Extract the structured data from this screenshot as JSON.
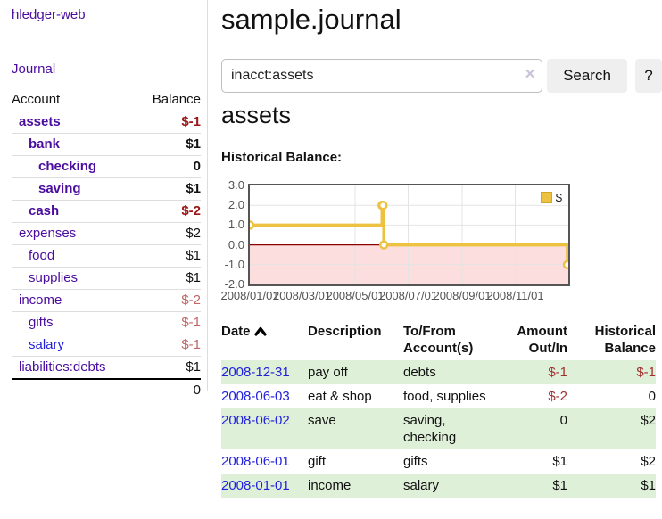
{
  "theme": {
    "purple": "#4a0d9e",
    "blue_link": "#2222dd",
    "dark_red": "#9b1616",
    "muted_red": "#c06767",
    "table_neg_red": "#a03030",
    "stripe_green": "#dff0d8"
  },
  "sidebar": {
    "brand": "hledger-web",
    "journal_label": "Journal",
    "header": {
      "account": "Account",
      "balance": "Balance"
    },
    "rows": [
      {
        "name": "assets",
        "balance": "$-1",
        "depth": 0,
        "bold": true,
        "balance_style": "neg-strong"
      },
      {
        "name": "bank",
        "balance": "$1",
        "depth": 1,
        "bold": true,
        "balance_style": "pos"
      },
      {
        "name": "checking",
        "balance": "0",
        "depth": 2,
        "bold": true,
        "balance_style": "pos"
      },
      {
        "name": "saving",
        "balance": "$1",
        "depth": 2,
        "bold": true,
        "balance_style": "pos"
      },
      {
        "name": "cash",
        "balance": "$-2",
        "depth": 1,
        "bold": true,
        "balance_style": "neg-strong"
      },
      {
        "name": "expenses",
        "balance": "$2",
        "depth": 0,
        "bold": false,
        "balance_style": "pos"
      },
      {
        "name": "food",
        "balance": "$1",
        "depth": 1,
        "bold": false,
        "balance_style": "pos"
      },
      {
        "name": "supplies",
        "balance": "$1",
        "depth": 1,
        "bold": false,
        "balance_style": "pos"
      },
      {
        "name": "income",
        "balance": "$-2",
        "depth": 0,
        "bold": false,
        "balance_style": "neg-muted"
      },
      {
        "name": "gifts",
        "balance": "$-1",
        "depth": 1,
        "bold": false,
        "balance_style": "neg-muted"
      },
      {
        "name": "salary",
        "balance": "$-1",
        "depth": 1,
        "bold": false,
        "balance_style": "neg-muted",
        "link_color": "blue"
      },
      {
        "name": "liabilities:debts",
        "balance": "$1",
        "depth": 0,
        "bold": false,
        "balance_style": "pos"
      }
    ],
    "total": "0"
  },
  "main": {
    "title": "sample.journal",
    "search": {
      "value": "inacct:assets",
      "clear_icon": "×",
      "search_button": "Search",
      "help_button": "?"
    },
    "account_heading": "assets",
    "chart_heading": "Historical Balance:"
  },
  "chart_data": {
    "type": "line",
    "step": true,
    "title": "Historical Balance:",
    "series": [
      {
        "name": "$",
        "points": [
          [
            "2008-01-01",
            1
          ],
          [
            "2008-06-01",
            2
          ],
          [
            "2008-06-02",
            2
          ],
          [
            "2008-06-03",
            0
          ],
          [
            "2008-12-31",
            -1
          ]
        ]
      }
    ],
    "x_range": [
      "2008-01-01",
      "2009-01-01"
    ],
    "ylim": [
      -2,
      3
    ],
    "yticks": [
      {
        "label": "3.0",
        "value": 3
      },
      {
        "label": "2.0",
        "value": 2
      },
      {
        "label": "1.0",
        "value": 1
      },
      {
        "label": "0.0",
        "value": 0
      },
      {
        "label": "-1.0",
        "value": -1
      },
      {
        "label": "-2.0",
        "value": -2
      }
    ],
    "xticks": [
      {
        "label": "2008/01/01",
        "date": "2008-01-01"
      },
      {
        "label": "2008/03/01",
        "date": "2008-03-01"
      },
      {
        "label": "2008/05/01",
        "date": "2008-05-01"
      },
      {
        "label": "2008/07/01",
        "date": "2008-07-01"
      },
      {
        "label": "2008/09/01",
        "date": "2008-09-01"
      },
      {
        "label": "2008/11/01",
        "date": "2008-11-01"
      }
    ],
    "grid_y": [
      2,
      1,
      -1
    ],
    "legend": {
      "position": "top-right",
      "label": "$"
    },
    "colors": {
      "line": "#edc240",
      "negative_fill": "#fcdede",
      "zero_line": "#8b0000",
      "grid": "#e4e4e4",
      "axis_text": "#545454",
      "border": "#555555"
    }
  },
  "transactions": {
    "columns": [
      {
        "line1": "Date",
        "sort": "asc",
        "align": "left"
      },
      {
        "line1": "Description",
        "align": "left"
      },
      {
        "line1": "To/From",
        "line2": "Account(s)",
        "align": "left"
      },
      {
        "line1": "Amount",
        "line2": "Out/In",
        "align": "right"
      },
      {
        "line1": "Historical",
        "line2": "Balance",
        "align": "right"
      }
    ],
    "rows": [
      {
        "date": "2008-12-31",
        "description": "pay off",
        "accounts": "debts",
        "amount": "$-1",
        "amount_neg": true,
        "balance": "$-1",
        "balance_neg": true
      },
      {
        "date": "2008-06-03",
        "description": "eat & shop",
        "accounts": "food, supplies",
        "amount": "$-2",
        "amount_neg": true,
        "balance": "0",
        "balance_neg": false
      },
      {
        "date": "2008-06-02",
        "description": "save",
        "accounts": "saving,\nchecking",
        "amount": "0",
        "amount_neg": false,
        "balance": "$2",
        "balance_neg": false
      },
      {
        "date": "2008-06-01",
        "description": "gift",
        "accounts": "gifts",
        "amount": "$1",
        "amount_neg": false,
        "balance": "$2",
        "balance_neg": false
      },
      {
        "date": "2008-01-01",
        "description": "income",
        "accounts": "salary",
        "amount": "$1",
        "amount_neg": false,
        "balance": "$1",
        "balance_neg": false
      }
    ]
  }
}
